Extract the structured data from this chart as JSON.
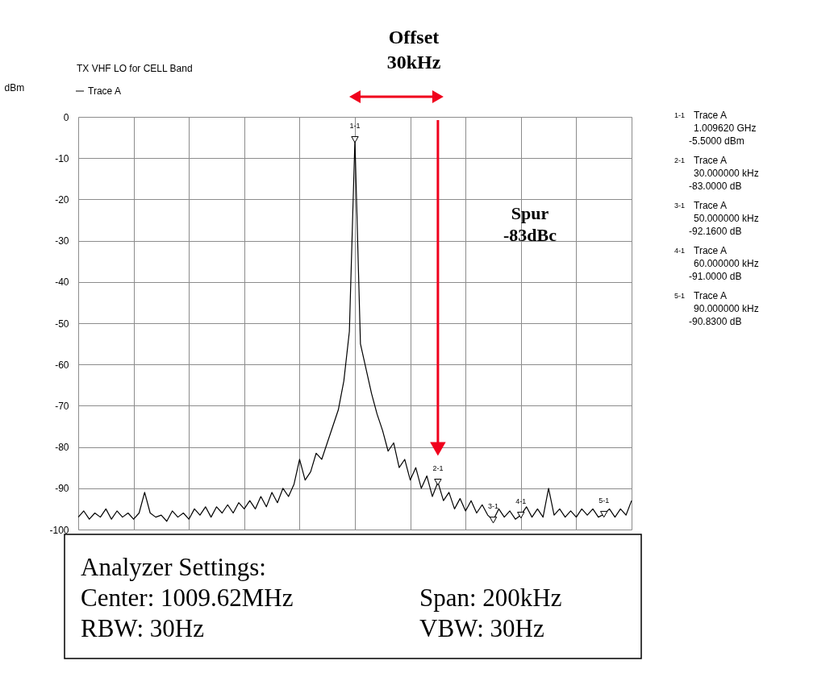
{
  "chart_data": {
    "type": "line",
    "title": "TX VHF LO for CELL Band",
    "ylabel": "dBm",
    "categories": [
      null,
      null,
      null,
      null,
      null,
      null,
      null,
      null,
      null,
      null,
      null,
      null,
      null,
      null,
      null,
      null,
      null,
      null,
      null,
      null,
      null,
      null,
      null,
      null,
      null,
      null,
      null,
      null,
      null,
      null,
      null,
      null,
      null,
      null,
      null,
      null,
      null,
      null,
      null,
      null,
      null,
      null,
      null,
      null,
      null,
      null,
      null,
      null,
      null,
      null,
      null,
      null,
      null,
      null,
      null,
      null,
      null,
      null,
      null,
      null,
      null,
      null,
      null,
      null,
      null,
      null,
      null,
      null,
      null,
      null,
      null,
      null,
      null,
      null,
      null,
      null,
      null,
      null,
      null,
      null,
      null,
      null,
      null,
      null,
      null,
      null,
      null,
      null,
      null,
      null,
      null,
      null,
      null,
      null,
      null,
      null,
      null,
      null,
      null,
      null,
      null
    ],
    "series": [
      {
        "name": "Trace A",
        "color": "#000000",
        "values": [
          -97,
          -95.5,
          -97.5,
          -96,
          -97,
          -95,
          -97.5,
          -95.5,
          -97,
          -96,
          -97.5,
          -96,
          -91,
          -96,
          -97,
          -96.5,
          -98,
          -95.5,
          -97,
          -96,
          -97.5,
          -95,
          -96.5,
          -94.5,
          -97,
          -94.5,
          -96,
          -94,
          -96,
          -93.5,
          -95,
          -93,
          -95,
          -92,
          -94.5,
          -91,
          -93.5,
          -90,
          -92,
          -89,
          -83,
          -88,
          -86,
          -81.5,
          -83,
          -79,
          -75,
          -71,
          -64,
          -52,
          -5.5,
          -55,
          -61,
          -67,
          -72,
          -76,
          -81,
          -79,
          -85,
          -83,
          -88,
          -85,
          -90,
          -87,
          -92,
          -88.5,
          -93,
          -91,
          -95,
          -92.5,
          -95.5,
          -93,
          -96,
          -94,
          -96.5,
          -97.7,
          -95,
          -97,
          -95.5,
          -97.5,
          -96.5,
          -94.5,
          -97,
          -95,
          -97,
          -90,
          -96.5,
          -95,
          -97,
          -95.5,
          -97,
          -95,
          -96.5,
          -95,
          -97,
          -96.3,
          -95,
          -97,
          -95,
          -96.5,
          -93
        ]
      },
      {
        "type": "scatter",
        "marker": "triangle",
        "color": "#000000",
        "values": [
          null,
          null,
          null,
          null,
          null,
          null,
          null,
          null,
          null,
          null,
          null,
          null,
          null,
          null,
          null,
          null,
          null,
          null,
          null,
          null,
          null,
          null,
          null,
          null,
          null,
          null,
          null,
          null,
          null,
          null,
          null,
          null,
          null,
          null,
          null,
          null,
          null,
          null,
          null,
          null,
          null,
          null,
          null,
          null,
          null,
          null,
          null,
          null,
          null,
          null,
          -5.5,
          null,
          null,
          null,
          null,
          null,
          null,
          null,
          null,
          null,
          null,
          null,
          null,
          null,
          null,
          -88.5,
          null,
          null,
          null,
          null,
          null,
          null,
          null,
          null,
          null,
          -97.7,
          null,
          null,
          null,
          null,
          -96.5,
          null,
          null,
          null,
          null,
          null,
          null,
          null,
          null,
          null,
          null,
          null,
          null,
          null,
          null,
          -96.3,
          null,
          null,
          null,
          null,
          null
        ],
        "value_labels": [
          null,
          null,
          null,
          null,
          null,
          null,
          null,
          null,
          null,
          null,
          null,
          null,
          null,
          null,
          null,
          null,
          null,
          null,
          null,
          null,
          null,
          null,
          null,
          null,
          null,
          null,
          null,
          null,
          null,
          null,
          null,
          null,
          null,
          null,
          null,
          null,
          null,
          null,
          null,
          null,
          null,
          null,
          null,
          null,
          null,
          null,
          null,
          null,
          null,
          null,
          "1-1",
          null,
          null,
          null,
          null,
          null,
          null,
          null,
          null,
          null,
          null,
          null,
          null,
          null,
          null,
          "2-1",
          null,
          null,
          null,
          null,
          null,
          null,
          null,
          null,
          null,
          "3-1",
          null,
          null,
          null,
          null,
          "4-1",
          null,
          null,
          null,
          null,
          null,
          null,
          null,
          null,
          null,
          null,
          null,
          null,
          null,
          null,
          "5-1",
          null,
          null,
          null,
          null,
          null
        ]
      }
    ],
    "ylim": [
      -100,
      0
    ],
    "yticks": [
      -100,
      -90,
      -80,
      -70,
      -60,
      -50,
      -40,
      -30,
      -20,
      -10,
      0
    ],
    "tick_labels": "y",
    "grid": true,
    "legend": "top left",
    "annotations": [
      "Offset 30kHz",
      "Spur -83dBc",
      "1-1",
      "Trace A",
      "1.009620 GHz",
      "-5.5000 dBm",
      "2-1",
      "Trace A",
      "30.000000 kHz",
      "-83.0000 dB",
      "3-1",
      "Trace A",
      "50.000000 kHz",
      "-92.1600 dB",
      "4-1",
      "Trace A",
      "60.000000 kHz",
      "-91.0000 dB",
      "5-1",
      "Trace A",
      "90.000000 kHz",
      "-90.8300 dB",
      "Analyzer Settings:",
      "Center: 1009.62MHz",
      "Span: 200kHz",
      "RBW: 30Hz",
      "VBW: 30Hz"
    ]
  }
}
